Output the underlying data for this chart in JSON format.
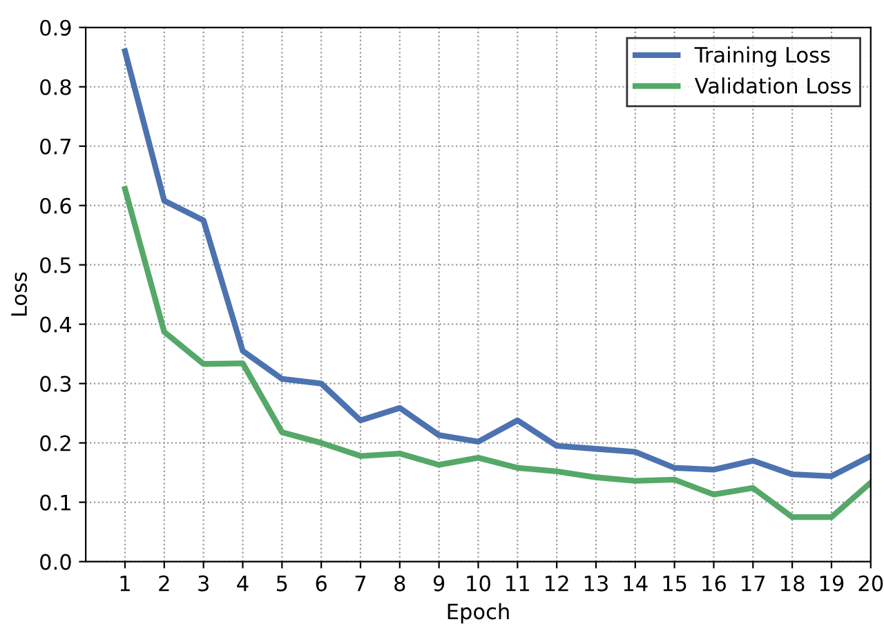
{
  "chart_data": {
    "type": "line",
    "xlabel": "Epoch",
    "ylabel": "Loss",
    "x": [
      1,
      2,
      3,
      4,
      5,
      6,
      7,
      8,
      9,
      10,
      11,
      12,
      13,
      14,
      15,
      16,
      17,
      18,
      19,
      20
    ],
    "series": [
      {
        "name": "Training Loss",
        "color": "#4c72b0",
        "values": [
          0.86,
          0.608,
          0.575,
          0.355,
          0.308,
          0.3,
          0.238,
          0.259,
          0.213,
          0.202,
          0.238,
          0.195,
          0.19,
          0.185,
          0.158,
          0.155,
          0.17,
          0.147,
          0.144,
          0.178
        ]
      },
      {
        "name": "Validation Loss",
        "color": "#55a868",
        "values": [
          0.628,
          0.387,
          0.333,
          0.334,
          0.218,
          0.2,
          0.178,
          0.182,
          0.163,
          0.175,
          0.158,
          0.152,
          0.142,
          0.136,
          0.138,
          0.113,
          0.124,
          0.075,
          0.075,
          0.133
        ]
      }
    ],
    "xlim": [
      0,
      20
    ],
    "xticks": [
      1,
      2,
      3,
      4,
      5,
      6,
      7,
      8,
      9,
      10,
      11,
      12,
      13,
      14,
      15,
      16,
      17,
      18,
      19,
      20
    ],
    "ylim": [
      0.0,
      0.9
    ],
    "yticks": [
      {
        "value": 0,
        "label": "0.0"
      },
      0.1,
      0.2,
      0.3,
      0.4,
      0.5,
      0.6,
      0.7,
      0.8,
      0.9
    ],
    "grid": true,
    "legend": "top right",
    "line_style": "solid"
  }
}
